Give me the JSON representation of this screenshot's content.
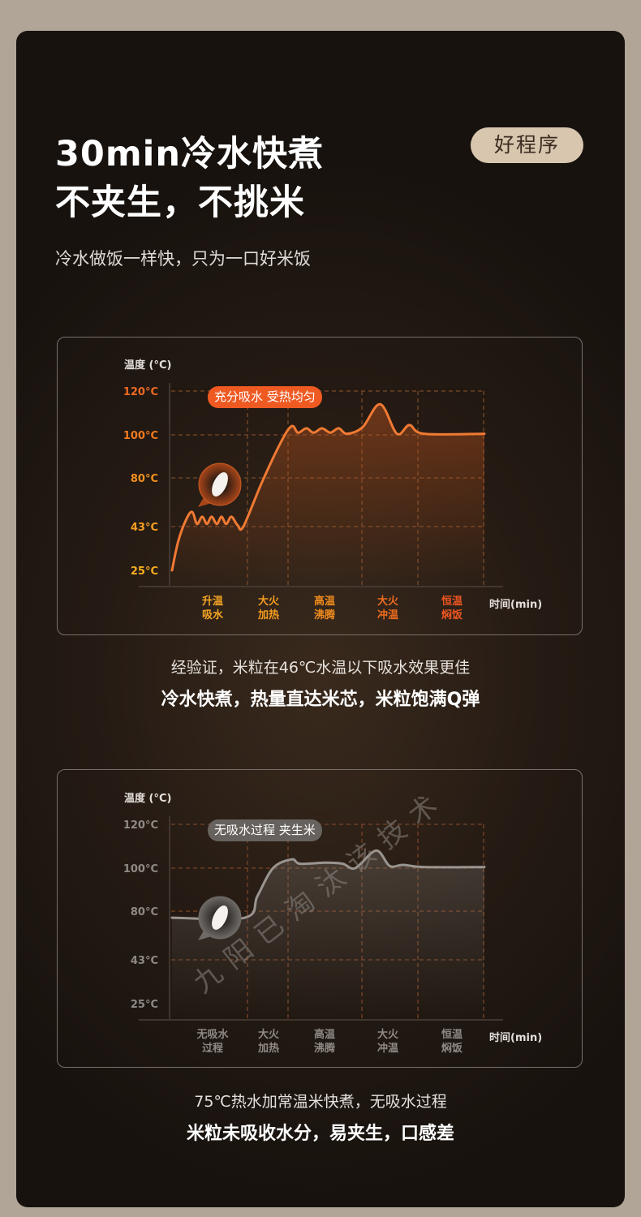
{
  "header": {
    "title_line1": "30min冷水快煮",
    "title_line2": "不夹生，不挑米",
    "badge": "好程序",
    "subtitle": "冷水做饭一样快，只为一口好米饭"
  },
  "colors": {
    "accent": "#ef5a22",
    "badge_bg": "#d8c6af",
    "gray_line": "#9a9590"
  },
  "chart_data": [
    {
      "type": "line",
      "ylabel": "温度 (°C)",
      "xlabel": "时间(min)",
      "yticks": [
        "25°C",
        "43°C",
        "80°C",
        "100°C",
        "120°C"
      ],
      "ytick_values": [
        25,
        43,
        80,
        100,
        120
      ],
      "ytick_colors": [
        "#f7ae1f",
        "#f6a020",
        "#f39020",
        "#f07a20",
        "#ef6a22"
      ],
      "categories": [
        "升温\n吸水",
        "大火\n加热",
        "高温\n沸腾",
        "大火\n冲温",
        "恒温\n焖饭"
      ],
      "category_colors": [
        "#f6a623",
        "#f39b1f",
        "#f28c1e",
        "#ef6c1f",
        "#ec5521"
      ],
      "xlim": [
        0,
        30
      ],
      "grid": true,
      "annotation": "充分吸水 受热均匀",
      "annotation_color": "#ef5a22",
      "line_color": "#f07a33",
      "icon": "rice-grain-bubble-icon",
      "series": [
        {
          "x": [
            0,
            0.6,
            1.4,
            1.95,
            2.4,
            2.9,
            3.35,
            3.8,
            4.3,
            4.75,
            5.2,
            5.7,
            6.3,
            6.85,
            8.6,
            10.5,
            11.5,
            12.1,
            12.9,
            13.6,
            14.4,
            15.2,
            16,
            16.8,
            18.3,
            20,
            21.6,
            22.8,
            24.2,
            30
          ],
          "y": [
            25,
            37,
            49,
            54,
            45,
            50.5,
            45,
            50.5,
            45,
            50.5,
            45,
            50.5,
            44,
            43,
            76,
            97,
            104,
            101,
            103,
            101,
            103,
            101,
            103,
            100.5,
            103.5,
            114,
            100.5,
            104.5,
            100.5,
            100.5
          ]
        }
      ]
    },
    {
      "type": "line",
      "ylabel": "温度 (°C)",
      "xlabel": "时间(min)",
      "yticks": [
        "25°C",
        "43°C",
        "80°C",
        "100°C",
        "120°C"
      ],
      "ytick_values": [
        25,
        43,
        80,
        100,
        120
      ],
      "ytick_colors": [
        "#8f8a85",
        "#8f8a85",
        "#8f8a85",
        "#8f8a85",
        "#8f8a85"
      ],
      "categories": [
        "无吸水\n过程",
        "大火\n加热",
        "高温\n沸腾",
        "大火\n冲温",
        "恒温\n焖饭"
      ],
      "category_colors": [
        "#8f8a85",
        "#8f8a85",
        "#8f8a85",
        "#8f8a85",
        "#8f8a85"
      ],
      "xlim": [
        0,
        30
      ],
      "grid": true,
      "annotation": "无吸水过程 夹生米",
      "annotation_color": "#67625e",
      "line_color": "#9a9590",
      "icon": "rice-grain-bubble-icon",
      "watermark": "九阳已淘汰该技术",
      "series": [
        {
          "x": [
            0,
            7,
            8.2,
            9.7,
            11.5,
            12.3,
            14.8,
            16.4,
            17.6,
            19.6,
            20.9,
            22.2,
            24.2,
            30
          ],
          "y": [
            75,
            75,
            87,
            100,
            104,
            102,
            102.5,
            102,
            100,
            108,
            101,
            101.5,
            100.5,
            100.5
          ]
        }
      ]
    }
  ],
  "captions": [
    {
      "line1": "经验证，米粒在46℃水温以下吸水效果更佳",
      "line2": "冷水快煮，热量直达米芯，米粒饱满Q弹"
    },
    {
      "line1": "75℃热水加常温米快煮，无吸水过程",
      "line2": "米粒未吸收水分，易夹生，口感差"
    }
  ]
}
